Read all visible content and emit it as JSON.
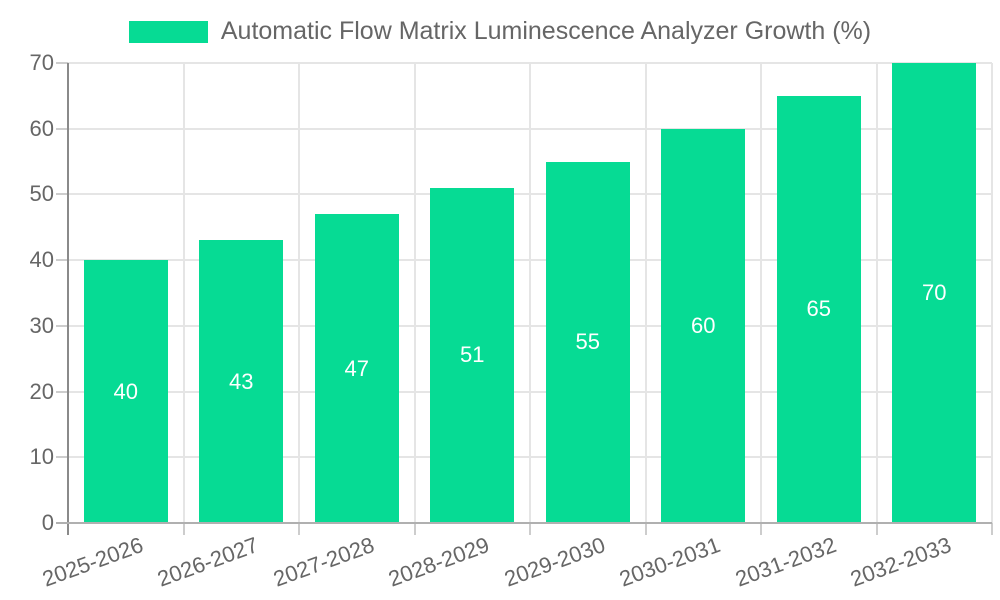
{
  "chart_data": {
    "type": "bar",
    "title": "Automatic Flow Matrix Luminescence Analyzer Growth (%)",
    "categories": [
      "2025-2026",
      "2026-2027",
      "2027-2028",
      "2028-2029",
      "2029-2030",
      "2030-2031",
      "2031-2032",
      "2032-2033"
    ],
    "values": [
      40,
      43,
      47,
      51,
      55,
      60,
      65,
      70
    ],
    "xlabel": "",
    "ylabel": "",
    "ylim": [
      0,
      70
    ],
    "yticks": [
      0,
      10,
      20,
      30,
      40,
      50,
      60,
      70
    ],
    "grid": true,
    "legend_position": "top",
    "bar_color": "#06db94",
    "value_label_color": "#ffffff",
    "axis_text_color": "#666666",
    "grid_color": "#e5e5e5"
  }
}
